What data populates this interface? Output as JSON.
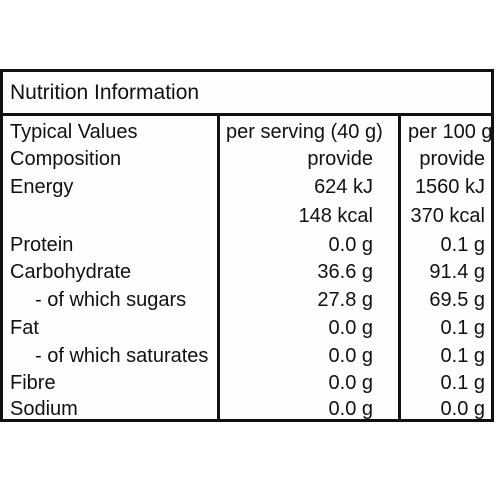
{
  "title": "Nutrition Information",
  "columns": {
    "label": "Typical Values",
    "per_serving": "per serving (40 g)",
    "per_100g": "per 100 g"
  },
  "rows": [
    {
      "label": "Composition",
      "per_serving": "provide",
      "per_100g": "provide"
    },
    {
      "label": "Energy",
      "per_serving": "624 kJ",
      "per_100g": "1560 kJ"
    },
    {
      "label": "",
      "per_serving": "148 kcal",
      "per_100g": "370 kcal"
    },
    {
      "label": "Protein",
      "per_serving": "0.0 g",
      "per_100g": "0.1 g"
    },
    {
      "label": "Carbohydrate",
      "per_serving": "36.6 g",
      "per_100g": "91.4 g"
    },
    {
      "label": "- of which sugars",
      "per_serving": "27.8 g",
      "per_100g": "69.5 g"
    },
    {
      "label": "Fat",
      "per_serving": "0.0 g",
      "per_100g": "0.1 g"
    },
    {
      "label": "- of which saturates",
      "per_serving": "0.0 g",
      "per_100g": "0.1 g"
    },
    {
      "label": "Fibre",
      "per_serving": "0.0 g",
      "per_100g": "0.1 g"
    },
    {
      "label": "Sodium",
      "per_serving": "0.0 g",
      "per_100g": "0.0 g"
    }
  ]
}
